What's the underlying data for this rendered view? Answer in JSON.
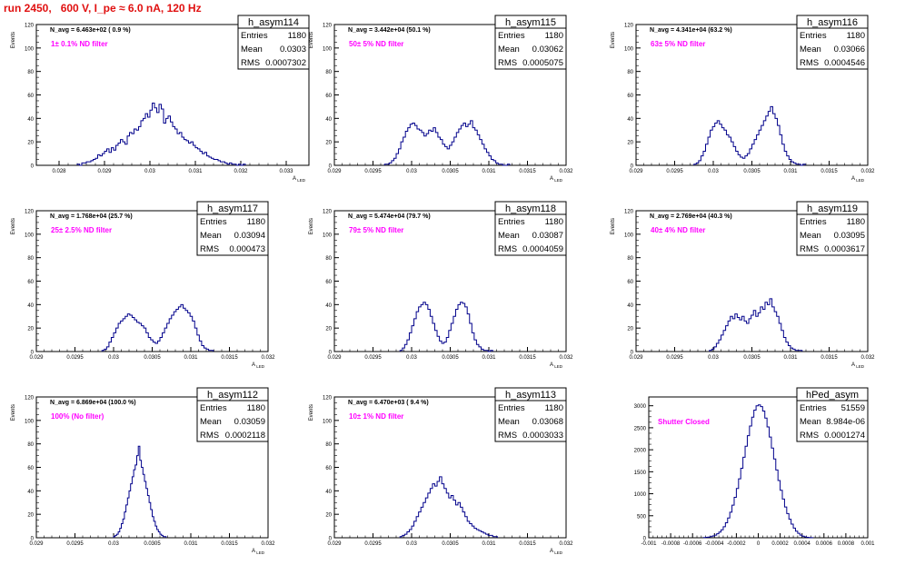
{
  "run_title": "run 2450,   600 V, I_pe ≈ 6.0 nA, 120 Hz",
  "colors": {
    "title": "#e01010",
    "histogram": "#00008b",
    "filter_text": "#ff00ff",
    "axes": "#000000"
  },
  "stats_labels": {
    "entries": "Entries",
    "mean": "Mean",
    "rms": "RMS"
  },
  "chart_data": [
    {
      "type": "histogram",
      "name": "h_asym114",
      "ylabel": "Events",
      "xlabel": "A_LED",
      "xlim": [
        0.0275,
        0.0335
      ],
      "ylim": [
        0,
        120
      ],
      "xticks": [
        0.028,
        0.029,
        0.03,
        0.031,
        0.032,
        0.033
      ],
      "xtick_labels": [
        "0.028",
        "0.029",
        "0.03",
        "0.031",
        "0.032",
        "0.033"
      ],
      "yticks": [
        0,
        20,
        40,
        60,
        80,
        100,
        120
      ],
      "annotation": "N_avg = 6.463e+02 ( 0.9 %)",
      "filter_label": "1± 0.1% ND filter",
      "stats": {
        "entries": "1180",
        "mean": "0.0303",
        "rms": "0.0007302"
      },
      "bins": {
        "start": 0.0284,
        "width": 5e-05,
        "counts": [
          1,
          0,
          2,
          2,
          3,
          3,
          4,
          5,
          6,
          9,
          8,
          10,
          12,
          14,
          11,
          15,
          13,
          17,
          19,
          22,
          20,
          18,
          25,
          28,
          27,
          31,
          30,
          33,
          38,
          40,
          44,
          41,
          47,
          53,
          49,
          45,
          52,
          48,
          36,
          40,
          42,
          37,
          33,
          31,
          27,
          28,
          24,
          22,
          21,
          19,
          20,
          17,
          15,
          14,
          12,
          10,
          11,
          8,
          7,
          6,
          5,
          5,
          4,
          3,
          3,
          2,
          1,
          2,
          1,
          1,
          0,
          1,
          0,
          1
        ]
      }
    },
    {
      "type": "histogram",
      "name": "h_asym115",
      "ylabel": "Events",
      "xlabel": "A_LED",
      "xlim": [
        0.029,
        0.032
      ],
      "ylim": [
        0,
        120
      ],
      "xticks": [
        0.029,
        0.0295,
        0.03,
        0.0305,
        0.031,
        0.0315,
        0.032
      ],
      "xtick_labels": [
        "0.029",
        "0.0295",
        "0.03",
        "0.0305",
        "0.031",
        "0.0315",
        "0.032"
      ],
      "yticks": [
        0,
        20,
        40,
        60,
        80,
        100,
        120
      ],
      "annotation": "N_avg = 3.442e+04 (50.1 %)",
      "filter_label": "50± 5% ND filter",
      "stats": {
        "entries": "1180",
        "mean": "0.03062",
        "rms": "0.0005075"
      },
      "bins": {
        "start": 0.02965,
        "width": 3e-05,
        "counts": [
          1,
          1,
          2,
          4,
          6,
          10,
          14,
          20,
          24,
          29,
          32,
          35,
          36,
          34,
          31,
          30,
          28,
          25,
          27,
          30,
          29,
          32,
          28,
          24,
          22,
          18,
          16,
          14,
          17,
          20,
          24,
          28,
          31,
          34,
          36,
          33,
          35,
          38,
          32,
          30,
          26,
          22,
          18,
          14,
          11,
          8,
          5,
          4,
          2,
          1,
          1,
          0,
          0,
          1
        ]
      }
    },
    {
      "type": "histogram",
      "name": "h_asym116",
      "ylabel": "Events",
      "xlabel": "A_LED",
      "xlim": [
        0.029,
        0.032
      ],
      "ylim": [
        0,
        120
      ],
      "xticks": [
        0.029,
        0.0295,
        0.03,
        0.0305,
        0.031,
        0.0315,
        0.032
      ],
      "xtick_labels": [
        "0.029",
        "0.0295",
        "0.03",
        "0.0305",
        "0.031",
        "0.0315",
        "0.032"
      ],
      "yticks": [
        0,
        20,
        40,
        60,
        80,
        100,
        120
      ],
      "annotation": "N_avg = 4.341e+04 (63.2 %)",
      "filter_label": "63± 5% ND filter",
      "stats": {
        "entries": "1180",
        "mean": "0.03066",
        "rms": "0.0004546"
      },
      "bins": {
        "start": 0.02975,
        "width": 3e-05,
        "counts": [
          1,
          2,
          4,
          8,
          12,
          18,
          24,
          30,
          33,
          36,
          38,
          35,
          32,
          30,
          26,
          24,
          20,
          16,
          12,
          9,
          7,
          6,
          8,
          10,
          14,
          18,
          22,
          26,
          30,
          34,
          38,
          42,
          46,
          50,
          44,
          40,
          34,
          26,
          18,
          12,
          8,
          5,
          3,
          2,
          1,
          1,
          0,
          1
        ]
      }
    },
    {
      "type": "histogram",
      "name": "h_asym117",
      "ylabel": "Events",
      "xlabel": "A_LED",
      "xlim": [
        0.029,
        0.032
      ],
      "ylim": [
        0,
        120
      ],
      "xticks": [
        0.029,
        0.0295,
        0.03,
        0.0305,
        0.031,
        0.0315,
        0.032
      ],
      "xtick_labels": [
        "0.029",
        "0.0295",
        "0.03",
        "0.0305",
        "0.031",
        "0.0315",
        "0.032"
      ],
      "yticks": [
        0,
        20,
        40,
        60,
        80,
        100,
        120
      ],
      "annotation": "N_avg = 1.768e+04 (25.7 %)",
      "filter_label": "25± 2.5% ND filter",
      "stats": {
        "entries": "1180",
        "mean": "0.03094",
        "rms": "0.000473"
      },
      "bins": {
        "start": 0.02985,
        "width": 3e-05,
        "counts": [
          1,
          2,
          4,
          8,
          12,
          16,
          20,
          24,
          26,
          28,
          30,
          32,
          31,
          29,
          27,
          25,
          24,
          22,
          20,
          16,
          12,
          10,
          8,
          7,
          9,
          12,
          16,
          20,
          24,
          28,
          31,
          34,
          36,
          38,
          40,
          37,
          35,
          33,
          30,
          26,
          20,
          14,
          9,
          5,
          3,
          2,
          1,
          1
        ]
      }
    },
    {
      "type": "histogram",
      "name": "h_asym118",
      "ylabel": "Events",
      "xlabel": "A_LED",
      "xlim": [
        0.029,
        0.032
      ],
      "ylim": [
        0,
        120
      ],
      "xticks": [
        0.029,
        0.0295,
        0.03,
        0.0305,
        0.031,
        0.0315,
        0.032
      ],
      "xtick_labels": [
        "0.029",
        "0.0295",
        "0.03",
        "0.0305",
        "0.031",
        "0.0315",
        "0.032"
      ],
      "yticks": [
        0,
        20,
        40,
        60,
        80,
        100,
        120
      ],
      "annotation": "N_avg = 5.474e+04 (79.7 %)",
      "filter_label": "79± 5% ND filter",
      "stats": {
        "entries": "1180",
        "mean": "0.03087",
        "rms": "0.0004059"
      },
      "bins": {
        "start": 0.02985,
        "width": 3e-05,
        "counts": [
          1,
          3,
          6,
          10,
          16,
          22,
          28,
          34,
          38,
          40,
          42,
          40,
          36,
          30,
          24,
          18,
          13,
          9,
          7,
          8,
          12,
          18,
          24,
          30,
          36,
          40,
          42,
          41,
          38,
          32,
          24,
          16,
          10,
          6,
          4,
          2,
          1,
          1,
          0,
          1
        ]
      }
    },
    {
      "type": "histogram",
      "name": "h_asym119",
      "ylabel": "Events",
      "xlabel": "A_LED",
      "xlim": [
        0.029,
        0.032
      ],
      "ylim": [
        0,
        120
      ],
      "xticks": [
        0.029,
        0.0295,
        0.03,
        0.0305,
        0.031,
        0.0315,
        0.032
      ],
      "xtick_labels": [
        "0.029",
        "0.0295",
        "0.03",
        "0.0305",
        "0.031",
        "0.0315",
        "0.032"
      ],
      "yticks": [
        0,
        20,
        40,
        60,
        80,
        100,
        120
      ],
      "annotation": "N_avg = 2.769e+04 (40.3 %)",
      "filter_label": "40± 4% ND filter",
      "stats": {
        "entries": "1180",
        "mean": "0.03095",
        "rms": "0.0003617"
      },
      "bins": {
        "start": 0.02995,
        "width": 3e-05,
        "counts": [
          1,
          2,
          4,
          7,
          10,
          14,
          18,
          22,
          26,
          30,
          28,
          32,
          29,
          27,
          30,
          26,
          24,
          28,
          31,
          35,
          30,
          33,
          38,
          36,
          42,
          40,
          45,
          38,
          34,
          30,
          24,
          18,
          12,
          8,
          5,
          3,
          2,
          1,
          1,
          1
        ]
      }
    },
    {
      "type": "histogram",
      "name": "h_asym112",
      "ylabel": "Events",
      "xlabel": "A_LED",
      "xlim": [
        0.029,
        0.032
      ],
      "ylim": [
        0,
        120
      ],
      "xticks": [
        0.029,
        0.0295,
        0.03,
        0.0305,
        0.031,
        0.0315,
        0.032
      ],
      "xtick_labels": [
        "0.029",
        "0.0295",
        "0.03",
        "0.0305",
        "0.031",
        "0.0315",
        "0.032"
      ],
      "yticks": [
        0,
        20,
        40,
        60,
        80,
        100,
        120
      ],
      "annotation": "N_avg = 6.869e+04 (100.0 %)",
      "filter_label": "100% (No filter)",
      "stats": {
        "entries": "1180",
        "mean": "0.03059",
        "rms": "0.0002118"
      },
      "bins": {
        "start": 0.03,
        "width": 2e-05,
        "counts": [
          1,
          2,
          3,
          5,
          8,
          12,
          16,
          22,
          28,
          34,
          40,
          46,
          52,
          58,
          62,
          70,
          78,
          66,
          60,
          54,
          48,
          42,
          36,
          30,
          24,
          18,
          14,
          10,
          7,
          5,
          3,
          2,
          1,
          1
        ]
      }
    },
    {
      "type": "histogram",
      "name": "h_asym113",
      "ylabel": "Events",
      "xlabel": "A_LED",
      "xlim": [
        0.029,
        0.032
      ],
      "ylim": [
        0,
        120
      ],
      "xticks": [
        0.029,
        0.0295,
        0.03,
        0.0305,
        0.031,
        0.0315,
        0.032
      ],
      "xtick_labels": [
        "0.029",
        "0.0295",
        "0.03",
        "0.0305",
        "0.031",
        "0.0315",
        "0.032"
      ],
      "yticks": [
        0,
        20,
        40,
        60,
        80,
        100,
        120
      ],
      "annotation": "N_avg = 6.470e+03 ( 9.4 %)",
      "filter_label": "10± 1% ND filter",
      "stats": {
        "entries": "1180",
        "mean": "0.03068",
        "rms": "0.0003033"
      },
      "bins": {
        "start": 0.02985,
        "width": 3e-05,
        "counts": [
          1,
          2,
          3,
          5,
          7,
          10,
          14,
          18,
          22,
          26,
          30,
          34,
          38,
          42,
          46,
          44,
          48,
          52,
          46,
          42,
          38,
          34,
          36,
          32,
          28,
          30,
          26,
          22,
          18,
          14,
          12,
          10,
          8,
          7,
          6,
          5,
          4,
          3,
          2,
          2,
          1,
          1
        ]
      }
    },
    {
      "type": "histogram",
      "name": "hPed_asym",
      "ylabel": "",
      "xlabel": "",
      "xlim": [
        -0.001,
        0.001
      ],
      "ylim": [
        0,
        3200
      ],
      "xticks": [
        -0.001,
        -0.0008,
        -0.0006,
        -0.0004,
        -0.0002,
        0,
        0.0002,
        0.0004,
        0.0006,
        0.0008,
        0.001
      ],
      "xtick_labels": [
        "-0.001",
        "-0.0008",
        "-0.0006",
        "-0.0004",
        "-0.0002",
        "0",
        "0.0002",
        "0.0004",
        "0.0006",
        "0.0008",
        "0.001"
      ],
      "yticks": [
        0,
        500,
        1000,
        1500,
        2000,
        2500,
        3000
      ],
      "annotation": "",
      "filter_label": "Shutter Closed",
      "stats": {
        "entries": "51559",
        "mean": "8.984e-06",
        "rms": "0.0001274"
      },
      "bins": {
        "start": -0.0005,
        "width": 2e-05,
        "counts": [
          5,
          10,
          15,
          25,
          40,
          60,
          90,
          130,
          180,
          250,
          340,
          450,
          580,
          740,
          920,
          1120,
          1340,
          1580,
          1830,
          2080,
          2320,
          2540,
          2740,
          2900,
          3000,
          3020,
          2980,
          2880,
          2720,
          2520,
          2290,
          2040,
          1790,
          1540,
          1300,
          1080,
          880,
          700,
          550,
          420,
          310,
          220,
          150,
          100,
          60,
          35,
          20,
          10,
          5,
          3
        ]
      }
    }
  ]
}
